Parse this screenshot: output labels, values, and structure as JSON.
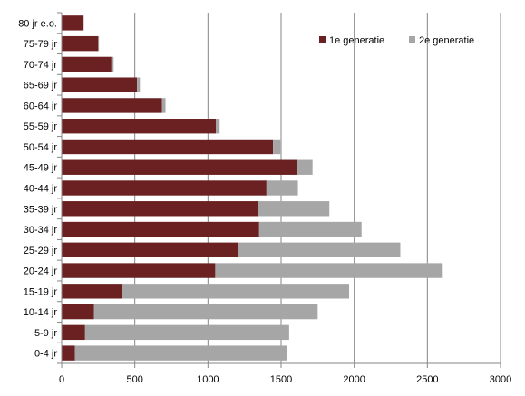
{
  "chart_data": {
    "type": "bar",
    "orientation": "horizontal",
    "stacked": true,
    "categories": [
      "80 jr e.o.",
      "75-79 jr",
      "70-74 jr",
      "65-69 jr",
      "60-64 jr",
      "55-59 jr",
      "50-54 jr",
      "45-49 jr",
      "40-44 jr",
      "35-39 jr",
      "30-34 jr",
      "25-29 jr",
      "20-24 jr",
      "15-19 jr",
      "10-14 jr",
      "5-9 jr",
      "0-4 jr"
    ],
    "series": [
      {
        "name": "1e generatie",
        "color": "#6b2121",
        "values": [
          150,
          250,
          340,
          515,
          685,
          1055,
          1445,
          1610,
          1400,
          1345,
          1350,
          1210,
          1050,
          410,
          220,
          160,
          90
        ]
      },
      {
        "name": "2e generatie",
        "color": "#a6a6a6",
        "values": [
          0,
          5,
          15,
          20,
          25,
          25,
          50,
          105,
          215,
          485,
          700,
          1105,
          1555,
          1555,
          1530,
          1395,
          1450
        ]
      }
    ],
    "xlim": [
      0,
      3000
    ],
    "x_ticks": [
      "0",
      "500",
      "1000",
      "1500",
      "2000",
      "2500",
      "3000"
    ],
    "grid": "vertical",
    "legend": "top-right",
    "title": "",
    "xlabel": "",
    "ylabel": ""
  }
}
